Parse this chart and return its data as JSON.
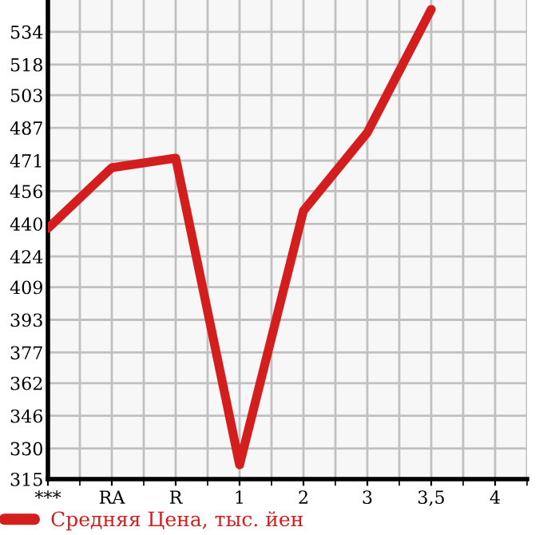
{
  "chart_data": {
    "type": "line",
    "categories": [
      "***",
      "RA",
      "R",
      "1",
      "2",
      "3",
      "3,5",
      "4"
    ],
    "series": [
      {
        "name": "Средняя Цена, тыс. йен",
        "color": "#d41e1e",
        "values": [
          437.8,
          467.5,
          472.2,
          322,
          446.4,
          484.7,
          545,
          null
        ]
      }
    ],
    "ylim": [
      315,
      549.6
    ],
    "yticks": [
      315,
      330,
      346,
      362,
      377,
      393,
      409,
      424,
      440,
      456,
      471,
      487,
      503,
      518,
      534
    ],
    "grid": true,
    "legend": "bottom left",
    "marker": "none",
    "line_style": "solid"
  }
}
